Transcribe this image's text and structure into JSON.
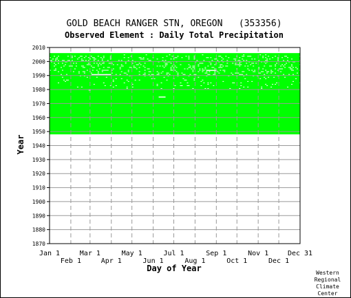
{
  "chart_data": {
    "type": "heatmap",
    "title": "GOLD BEACH RANGER STN, OREGON   (353356)",
    "subtitle": "Observed Element : Daily Total Precipitation",
    "xlabel": "Day of Year",
    "ylabel": "Year",
    "ylim": [
      1870,
      2010
    ],
    "yticks": [
      1870,
      1880,
      1890,
      1900,
      1910,
      1920,
      1930,
      1940,
      1950,
      1960,
      1970,
      1980,
      1990,
      2000,
      2010
    ],
    "xlim": [
      1,
      366
    ],
    "xticks_top": [
      {
        "label": "Jan 1",
        "day": 1
      },
      {
        "label": "Mar 1",
        "day": 60
      },
      {
        "label": "May 1",
        "day": 121
      },
      {
        "label": "Jul 1",
        "day": 182
      },
      {
        "label": "Sep 1",
        "day": 244
      },
      {
        "label": "Nov 1",
        "day": 305
      },
      {
        "label": "Dec 31",
        "day": 366
      }
    ],
    "xticks_bottom": [
      {
        "label": "Feb 1",
        "day": 32
      },
      {
        "label": "Apr 1",
        "day": 91
      },
      {
        "label": "Jun 1",
        "day": 152
      },
      {
        "label": "Aug 1",
        "day": 213
      },
      {
        "label": "Oct 1",
        "day": 274
      },
      {
        "label": "Dec 1",
        "day": 335
      }
    ],
    "grid": true,
    "data_color": "#00ff00",
    "coverage": {
      "start_year": 1948,
      "end_year": 2006
    },
    "sparse_years": [
      2005,
      2004,
      1991,
      1974,
      1947
    ],
    "gaps": [
      {
        "year": 1990,
        "day_start": 62,
        "day_end": 90
      },
      {
        "year": 1979,
        "day_start": 58,
        "day_end": 61
      },
      {
        "year": 1974,
        "day_start": 160,
        "day_end": 170
      },
      {
        "year": 1993,
        "day_start": 230,
        "day_end": 245
      }
    ]
  },
  "credit": [
    "Western",
    "Regional",
    "Climate",
    "Center"
  ]
}
